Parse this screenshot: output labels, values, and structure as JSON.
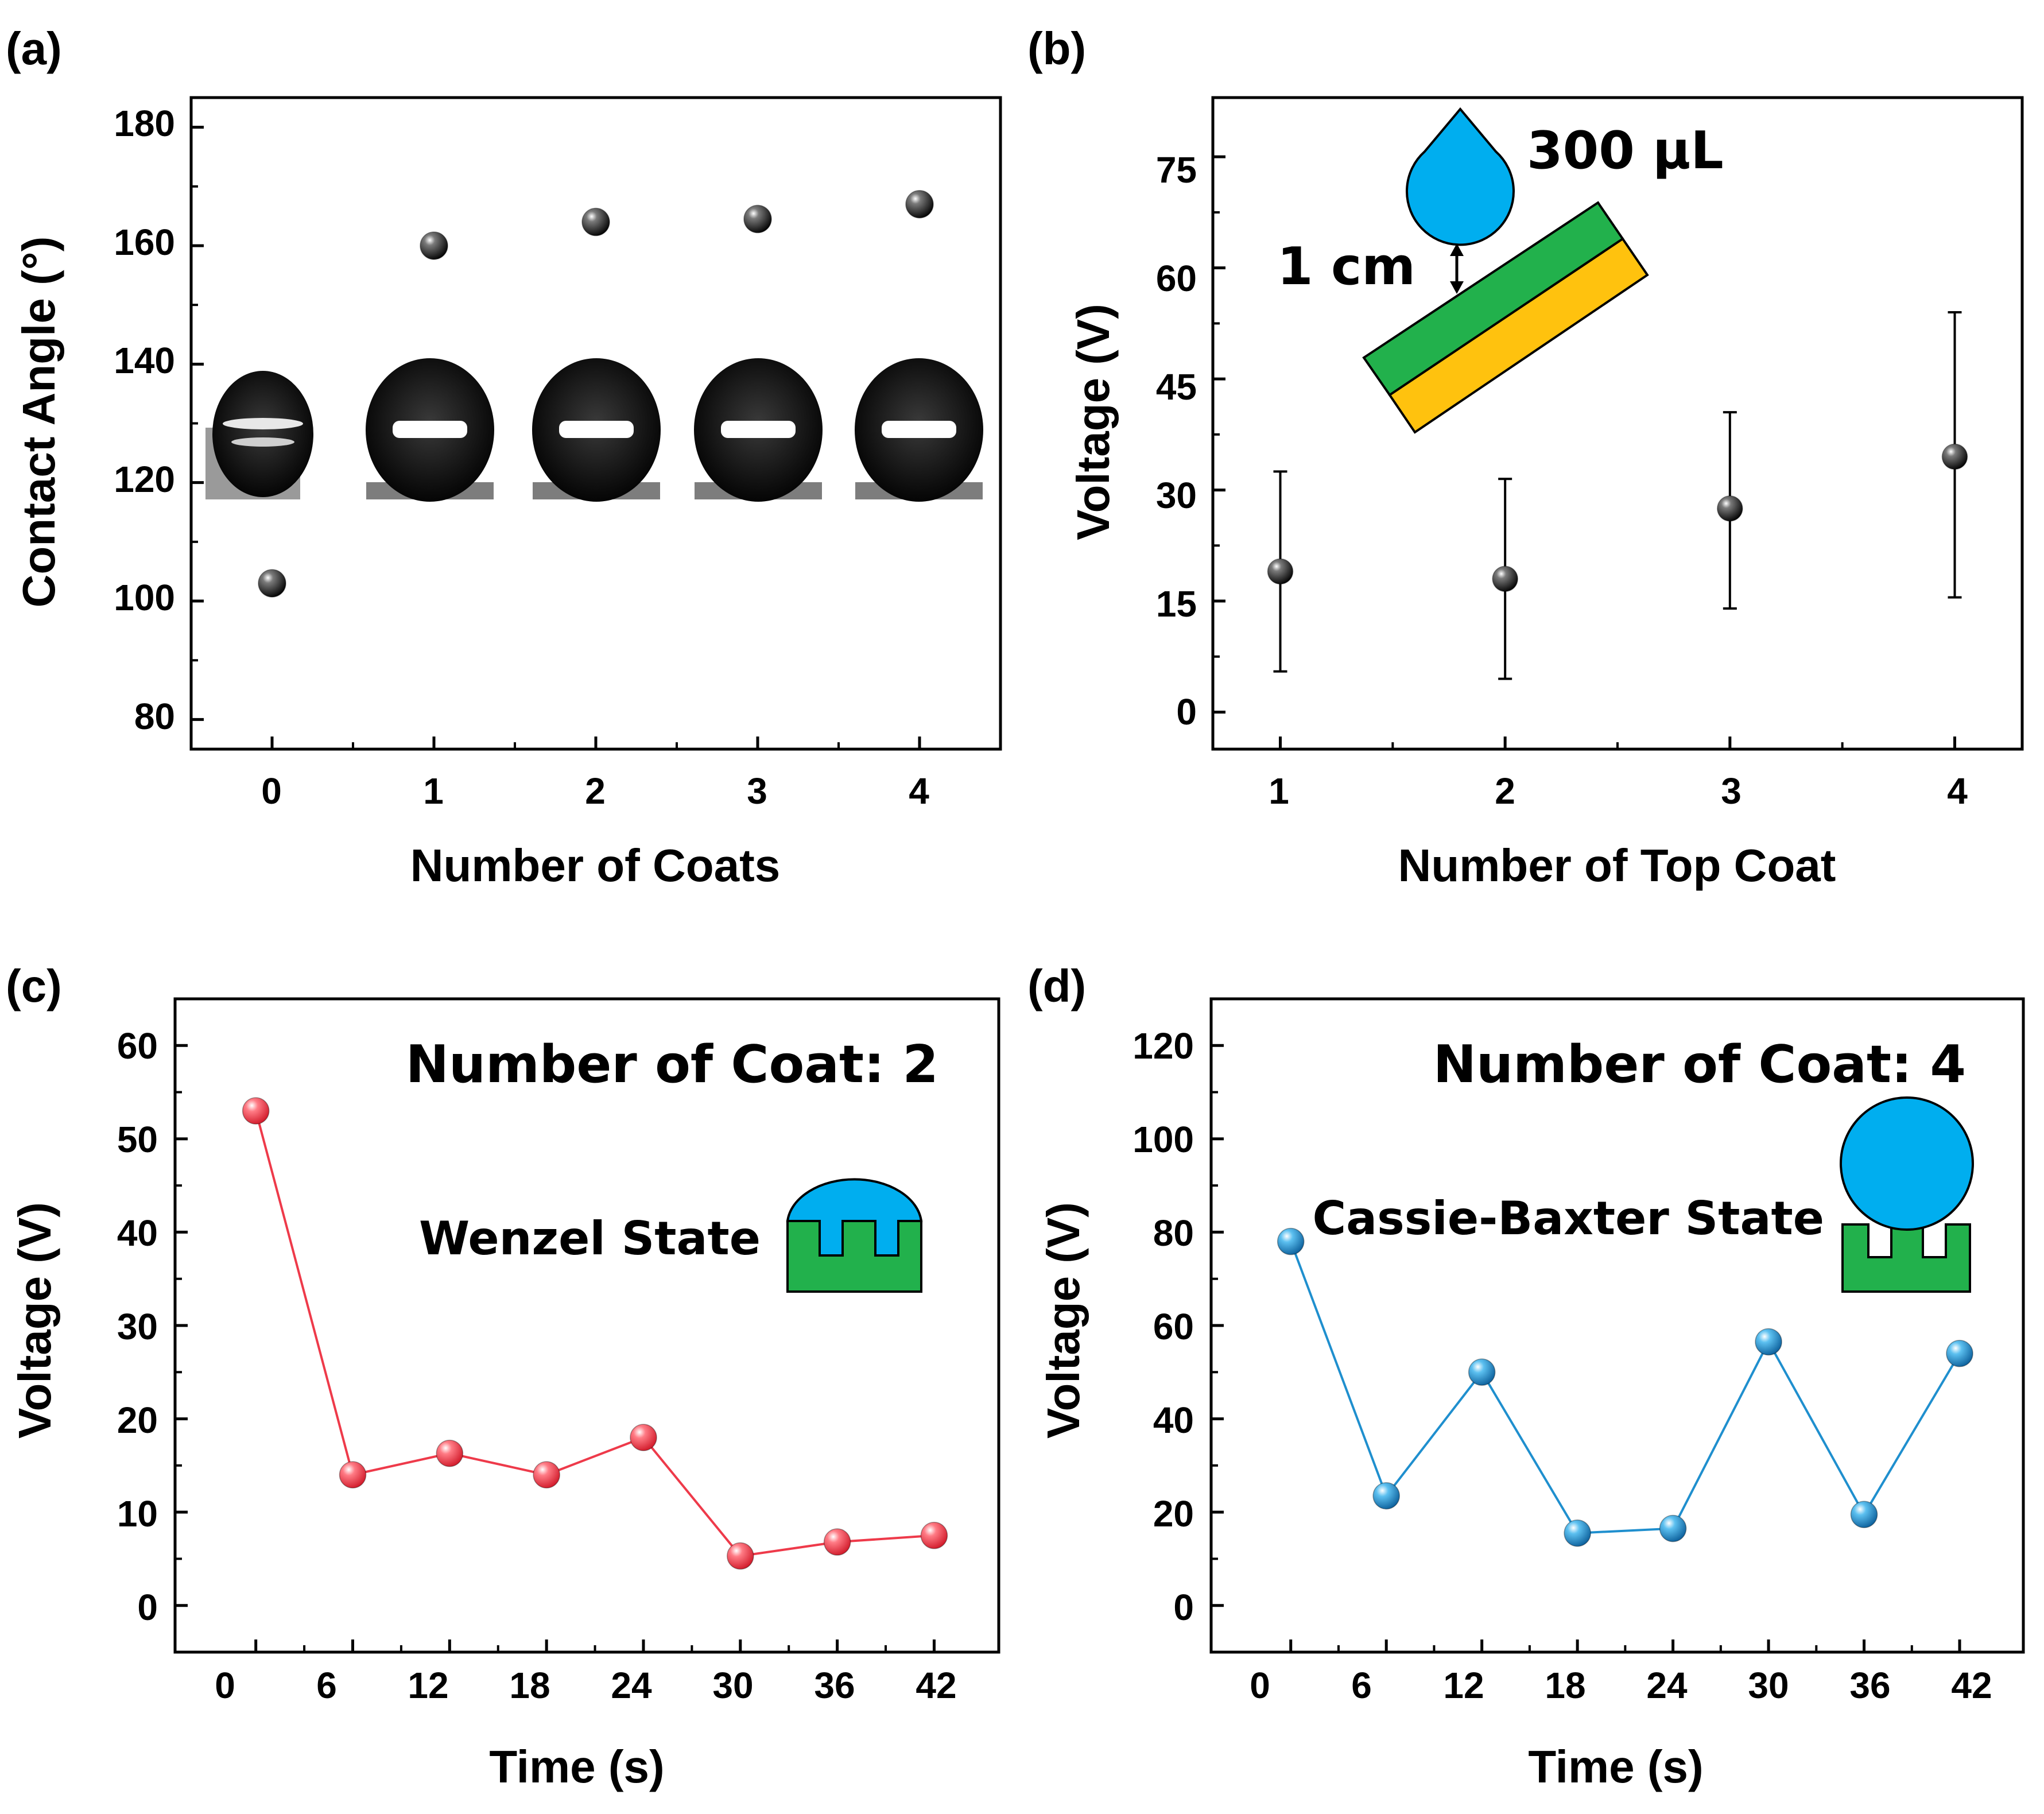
{
  "chart_data": [
    {
      "id": "a",
      "type": "scatter",
      "panel_label": "(a)",
      "xlabel": "Number of Coats",
      "ylabel": "Contact Angle (°)",
      "xlim": [
        -0.5,
        4.5
      ],
      "ylim": [
        75,
        185
      ],
      "xticks": [
        0,
        1,
        2,
        3,
        4
      ],
      "yticks": [
        80,
        100,
        120,
        140,
        160,
        180
      ],
      "x": [
        0,
        1,
        2,
        3,
        4
      ],
      "values": [
        103,
        160,
        164,
        164.5,
        167
      ],
      "marker_color": "#1a1a1a"
    },
    {
      "id": "b",
      "type": "scatter",
      "panel_label": "(b)",
      "xlabel": "Number of Top Coat",
      "ylabel": "Voltage (V)",
      "xlim": [
        0.7,
        4.3
      ],
      "ylim": [
        -5,
        83
      ],
      "xticks": [
        1,
        2,
        3,
        4
      ],
      "yticks": [
        0,
        15,
        30,
        45,
        60,
        75
      ],
      "x": [
        1,
        2,
        3,
        4
      ],
      "values": [
        19,
        18,
        27.5,
        34.5
      ],
      "error_low": [
        5.5,
        4.5,
        14,
        15.5
      ],
      "error_high": [
        32.5,
        31.5,
        40.5,
        54
      ],
      "marker_color": "#1a1a1a",
      "annotations": {
        "volume": "300 μL",
        "height": "1 cm"
      },
      "inset_colors": {
        "drop": "#00aeef",
        "top_layer": "#22b14c",
        "substrate": "#ffc20e"
      }
    },
    {
      "id": "c",
      "type": "line",
      "panel_label": "(c)",
      "xlabel": "Time (s)",
      "ylabel": "Voltage (V)",
      "xlim": [
        -5,
        46
      ],
      "ylim": [
        -5,
        65
      ],
      "xticks": [
        0,
        6,
        12,
        18,
        24,
        30,
        36,
        42
      ],
      "yticks": [
        0,
        10,
        20,
        30,
        40,
        50,
        60
      ],
      "x": [
        0,
        6,
        12,
        18,
        24,
        30,
        36,
        42
      ],
      "values": [
        53,
        14,
        16.3,
        14,
        18,
        5.3,
        6.8,
        7.5
      ],
      "color": "#ee3a4a",
      "annotations": {
        "title": "Number of Coat: 2",
        "state": "Wenzel State"
      },
      "inset_colors": {
        "drop": "#00aeef",
        "surface": "#22b14c"
      }
    },
    {
      "id": "d",
      "type": "line",
      "panel_label": "(d)",
      "xlabel": "Time (s)",
      "ylabel": "Voltage (V)",
      "xlim": [
        -5,
        46
      ],
      "ylim": [
        -10,
        130
      ],
      "xticks": [
        0,
        6,
        12,
        18,
        24,
        30,
        36,
        42
      ],
      "yticks": [
        0,
        20,
        40,
        60,
        80,
        100,
        120
      ],
      "x": [
        0,
        6,
        12,
        18,
        24,
        30,
        36,
        42
      ],
      "values": [
        78,
        23.5,
        50,
        15.5,
        16.5,
        56.5,
        19.5,
        54
      ],
      "color": "#1f8fce",
      "annotations": {
        "title": "Number of Coat: 4",
        "state": "Cassie-Baxter State"
      },
      "inset_colors": {
        "drop": "#00aeef",
        "surface": "#22b14c"
      }
    }
  ]
}
